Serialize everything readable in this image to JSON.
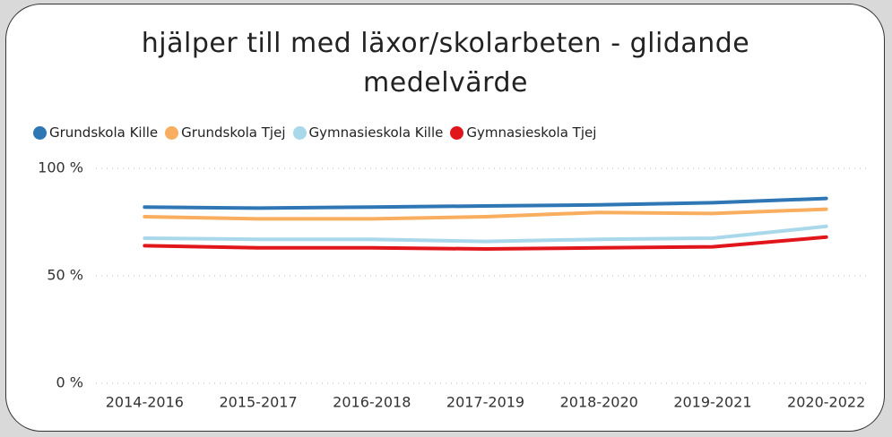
{
  "chart_data": {
    "type": "line",
    "title": "hjälper till med läxor/skolarbeten - glidande medelvärde",
    "categories": [
      "2014-2016",
      "2015-2017",
      "2016-2018",
      "2017-2019",
      "2018-2020",
      "2019-2021",
      "2020-2022"
    ],
    "series": [
      {
        "name": "Grundskola Kille",
        "color": "#2f76b5",
        "values": [
          82,
          81.5,
          82,
          82.5,
          83,
          84,
          86
        ]
      },
      {
        "name": "Grundskola Tjej",
        "color": "#f9ad5f",
        "values": [
          77.5,
          76.5,
          76.5,
          77.5,
          79.5,
          79,
          81
        ]
      },
      {
        "name": "Gymnasieskola Kille",
        "color": "#a8d8ea",
        "values": [
          67.5,
          67,
          67,
          66,
          67,
          67.5,
          73
        ]
      },
      {
        "name": "Gymnasieskola Tjej",
        "color": "#e0161b",
        "values": [
          64,
          63,
          63,
          62.5,
          63,
          63.5,
          68
        ]
      }
    ],
    "ylim": [
      0,
      100
    ],
    "yticks": [
      {
        "value": 0,
        "label": "0 %"
      },
      {
        "value": 50,
        "label": "50 %"
      },
      {
        "value": 100,
        "label": "100 %"
      }
    ],
    "grid": true
  }
}
